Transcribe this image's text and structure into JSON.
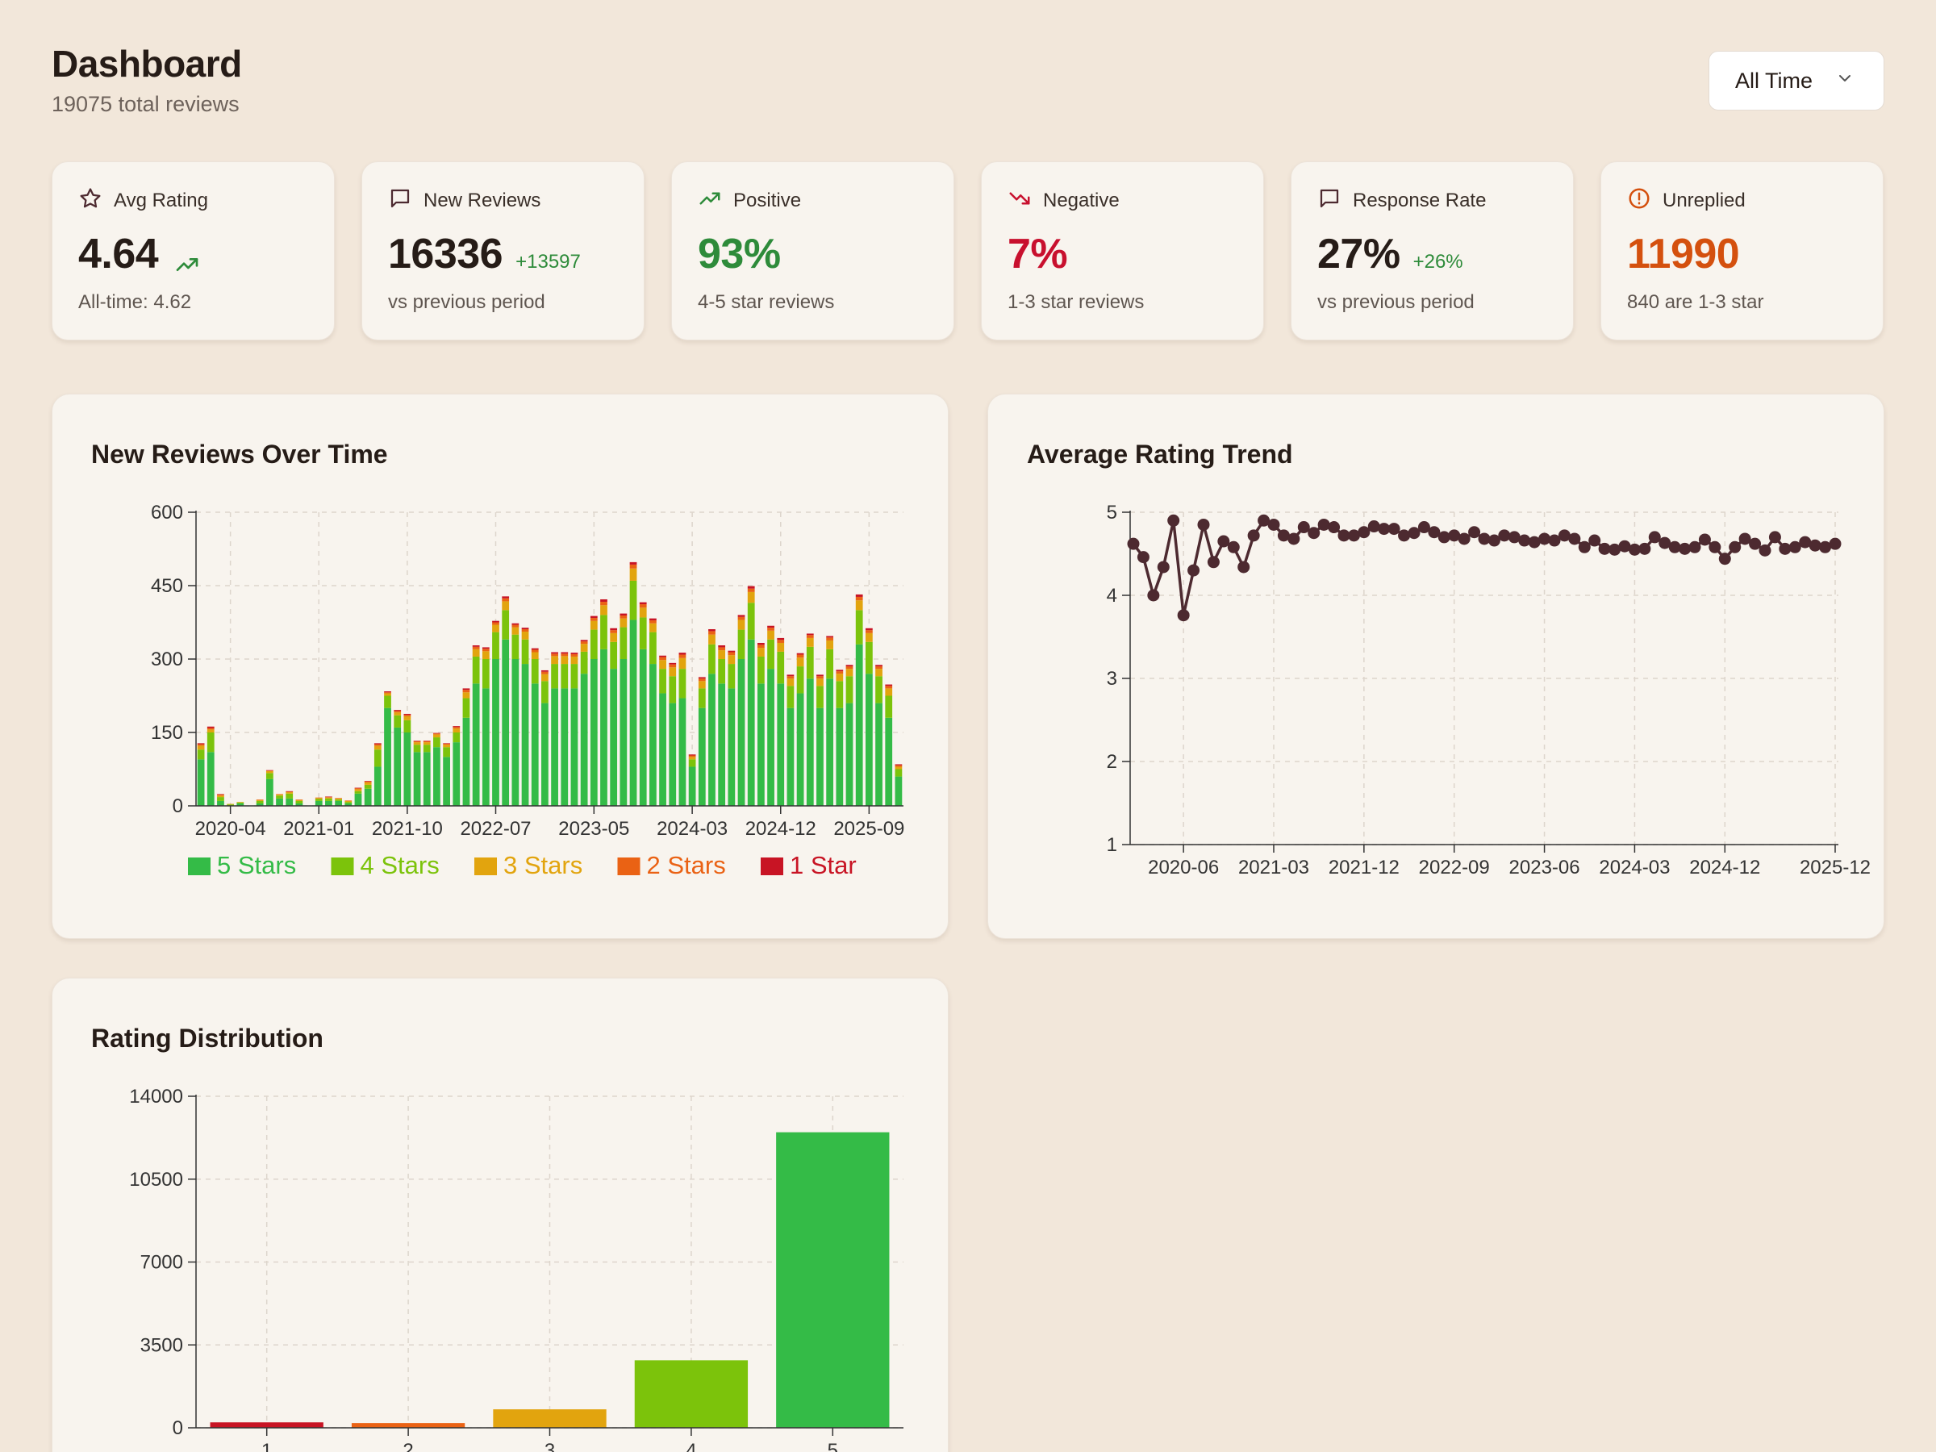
{
  "header": {
    "title": "Dashboard",
    "subtitle": "19075 total reviews"
  },
  "period_select": {
    "value": "All Time",
    "icon": "chevron-down-icon"
  },
  "kpis": [
    {
      "label": "Avg Rating",
      "icon": "star-icon",
      "value": "4.64",
      "delta": "",
      "sub": "All-time: 4.62",
      "value_color": "#261c17",
      "trend_icon": "trending-up-icon"
    },
    {
      "label": "New Reviews",
      "icon": "message-icon",
      "value": "16336",
      "delta": "+13597",
      "sub": "vs previous period",
      "value_color": "#261c17"
    },
    {
      "label": "Positive",
      "icon": "trending-up-icon",
      "value": "93%",
      "delta": "",
      "sub": "4-5 star reviews",
      "value_color": "#2e8b3a"
    },
    {
      "label": "Negative",
      "icon": "trending-down-icon",
      "value": "7%",
      "delta": "",
      "sub": "1-3 star reviews",
      "value_color": "#c8102e"
    },
    {
      "label": "Response Rate",
      "icon": "message-icon",
      "value": "27%",
      "delta": "+26%",
      "sub": "vs previous period",
      "value_color": "#261c17"
    },
    {
      "label": "Unreplied",
      "icon": "alert-circle-icon",
      "value": "11990",
      "delta": "",
      "sub": "840 are 1-3 star",
      "value_color": "#d4500e"
    }
  ],
  "colors": {
    "five": "#34bb47",
    "four": "#7cc30b",
    "three": "#e2a40e",
    "two": "#ea6214",
    "one": "#c81424",
    "line": "#4d2a30"
  },
  "cards": {
    "reviews_over_time": {
      "title": "New Reviews Over Time"
    },
    "avg_rating_trend": {
      "title": "Average Rating Trend"
    },
    "rating_distribution": {
      "title": "Rating Distribution"
    }
  },
  "chart_data": [
    {
      "type": "bar",
      "stacked": true,
      "title": "New Reviews Over Time",
      "ylim": [
        0,
        600
      ],
      "yticks": [
        "0",
        "150",
        "300",
        "450",
        "600"
      ],
      "xtick_labels": [
        "2020-04",
        "2021-01",
        "2021-10",
        "2022-07",
        "2023-05",
        "2024-03",
        "2024-12",
        "2025-09"
      ],
      "grid": true,
      "legend": "bottom",
      "series": [
        {
          "name": "5 Stars",
          "values": [
            95,
            110,
            10,
            0,
            5,
            0,
            5,
            55,
            15,
            15,
            5,
            0,
            10,
            10,
            10,
            5,
            25,
            35,
            80,
            200,
            160,
            150,
            110,
            110,
            120,
            100,
            130,
            180,
            250,
            240,
            300,
            340,
            300,
            290,
            250,
            210,
            240,
            240,
            240,
            270,
            300,
            320,
            280,
            300,
            380,
            320,
            290,
            230,
            210,
            220,
            80,
            200,
            270,
            250,
            240,
            300,
            340,
            250,
            280,
            250,
            200,
            230,
            260,
            200,
            260,
            200,
            210,
            330,
            270,
            210,
            180,
            60
          ]
        },
        {
          "name": "4 Stars",
          "values": [
            20,
            40,
            8,
            3,
            2,
            0,
            5,
            12,
            6,
            10,
            5,
            0,
            4,
            5,
            3,
            3,
            5,
            8,
            35,
            25,
            25,
            25,
            15,
            15,
            20,
            20,
            20,
            40,
            55,
            60,
            55,
            60,
            50,
            50,
            50,
            45,
            50,
            50,
            50,
            45,
            60,
            70,
            55,
            65,
            80,
            65,
            65,
            50,
            55,
            60,
            15,
            40,
            60,
            50,
            50,
            60,
            75,
            55,
            60,
            65,
            45,
            55,
            65,
            45,
            60,
            55,
            55,
            70,
            65,
            55,
            45,
            15
          ]
        },
        {
          "name": "3 Stars",
          "values": [
            8,
            6,
            3,
            1,
            1,
            0,
            2,
            4,
            2,
            3,
            2,
            0,
            2,
            2,
            2,
            2,
            4,
            5,
            8,
            5,
            6,
            8,
            5,
            5,
            6,
            5,
            8,
            12,
            15,
            16,
            15,
            18,
            15,
            16,
            14,
            14,
            16,
            16,
            15,
            16,
            18,
            20,
            18,
            18,
            25,
            20,
            18,
            18,
            18,
            22,
            5,
            15,
            20,
            18,
            18,
            20,
            22,
            18,
            18,
            18,
            15,
            18,
            18,
            15,
            18,
            15,
            15,
            20,
            18,
            15,
            15,
            5
          ]
        },
        {
          "name": "2 Stars",
          "values": [
            3,
            3,
            2,
            0,
            0,
            0,
            1,
            1,
            1,
            1,
            1,
            0,
            1,
            1,
            1,
            1,
            2,
            2,
            3,
            2,
            3,
            3,
            2,
            2,
            2,
            2,
            3,
            5,
            5,
            5,
            5,
            6,
            5,
            5,
            5,
            5,
            5,
            5,
            5,
            5,
            6,
            7,
            6,
            6,
            8,
            7,
            6,
            6,
            6,
            7,
            3,
            5,
            7,
            6,
            6,
            6,
            7,
            6,
            6,
            6,
            5,
            6,
            6,
            5,
            6,
            5,
            5,
            7,
            6,
            5,
            5,
            3
          ]
        },
        {
          "name": "1 Star",
          "values": [
            2,
            3,
            1,
            0,
            0,
            0,
            0,
            1,
            0,
            1,
            0,
            0,
            0,
            1,
            0,
            0,
            1,
            1,
            2,
            2,
            2,
            2,
            1,
            1,
            1,
            1,
            2,
            3,
            3,
            3,
            3,
            4,
            3,
            3,
            3,
            3,
            3,
            3,
            3,
            3,
            4,
            5,
            4,
            4,
            5,
            4,
            4,
            3,
            3,
            4,
            2,
            3,
            4,
            4,
            3,
            4,
            5,
            4,
            4,
            4,
            3,
            3,
            3,
            3,
            3,
            3,
            3,
            5,
            4,
            3,
            3,
            2
          ]
        }
      ]
    },
    {
      "type": "line",
      "title": "Average Rating Trend",
      "ylim": [
        1,
        5
      ],
      "yticks": [
        "1",
        "2",
        "3",
        "4",
        "5"
      ],
      "xtick_labels": [
        "2020-06",
        "2021-03",
        "2021-12",
        "2022-09",
        "2023-06",
        "2024-03",
        "2024-12",
        "2025-12"
      ],
      "grid": true,
      "series": [
        {
          "values": [
            4.62,
            4.46,
            4.0,
            4.34,
            4.9,
            3.76,
            4.3,
            4.85,
            4.4,
            4.65,
            4.58,
            4.34,
            4.72,
            4.9,
            4.85,
            4.72,
            4.68,
            4.82,
            4.75,
            4.85,
            4.82,
            4.72,
            4.72,
            4.76,
            4.83,
            4.8,
            4.8,
            4.72,
            4.75,
            4.82,
            4.76,
            4.7,
            4.72,
            4.68,
            4.76,
            4.68,
            4.66,
            4.72,
            4.7,
            4.66,
            4.64,
            4.68,
            4.66,
            4.72,
            4.68,
            4.58,
            4.66,
            4.56,
            4.55,
            4.59,
            4.55,
            4.56,
            4.7,
            4.63,
            4.58,
            4.56,
            4.58,
            4.67,
            4.58,
            4.44,
            4.58,
            4.68,
            4.62,
            4.54,
            4.7,
            4.56,
            4.58,
            4.64,
            4.6,
            4.58,
            4.62
          ]
        }
      ]
    },
    {
      "type": "bar",
      "title": "Rating Distribution",
      "categories": [
        "1",
        "2",
        "3",
        "4",
        "5"
      ],
      "values": [
        230,
        200,
        780,
        2850,
        12480
      ],
      "ylim": [
        0,
        14000
      ],
      "yticks": [
        "0",
        "3500",
        "7000",
        "10500",
        "14000"
      ],
      "grid": true
    }
  ]
}
